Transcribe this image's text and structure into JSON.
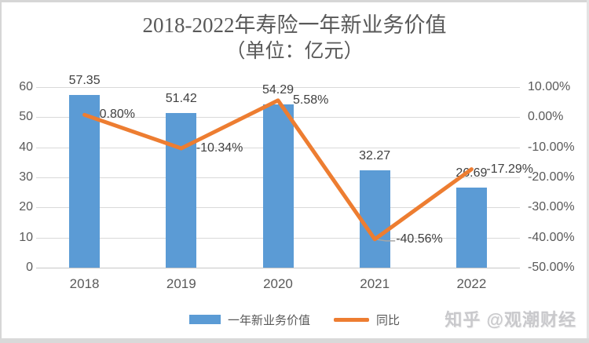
{
  "chart_data": {
    "type": "combo",
    "title": "2018-2022年寿险一年新业务价值",
    "subtitle": "（单位：亿元）",
    "categories": [
      "2018",
      "2019",
      "2020",
      "2021",
      "2022"
    ],
    "series": [
      {
        "name": "一年新业务价值",
        "type": "bar",
        "color": "#5B9BD5",
        "axis": "left",
        "values": [
          57.35,
          51.42,
          54.29,
          32.27,
          26.69
        ],
        "labels": [
          "57.35",
          "51.42",
          "54.29",
          "32.27",
          "26.69"
        ]
      },
      {
        "name": "同比",
        "type": "line",
        "color": "#ED7D31",
        "axis": "right",
        "values": [
          0.8,
          -10.34,
          5.58,
          -40.56,
          -17.29
        ],
        "labels": [
          "0.80%",
          "-10.34%",
          "5.58%",
          "-40.56%",
          "-17.29%"
        ]
      }
    ],
    "left_axis": {
      "min": 0,
      "max": 60,
      "ticks": [
        "60",
        "50",
        "40",
        "30",
        "20",
        "10",
        "0"
      ]
    },
    "right_axis": {
      "min": -50,
      "max": 10,
      "ticks": [
        "10.00%",
        "0.00%",
        "-10.00%",
        "-20.00%",
        "-30.00%",
        "-40.00%",
        "-50.00%"
      ]
    },
    "grid": true,
    "legend_position": "bottom"
  },
  "watermark": {
    "text": "知乎 @观潮财经"
  },
  "colors": {
    "grid": "#D9D9D9",
    "axis_text": "#595959",
    "data_label_text": "#404040",
    "title_text": "#595959",
    "watermark_text": "#C9C9CC"
  }
}
